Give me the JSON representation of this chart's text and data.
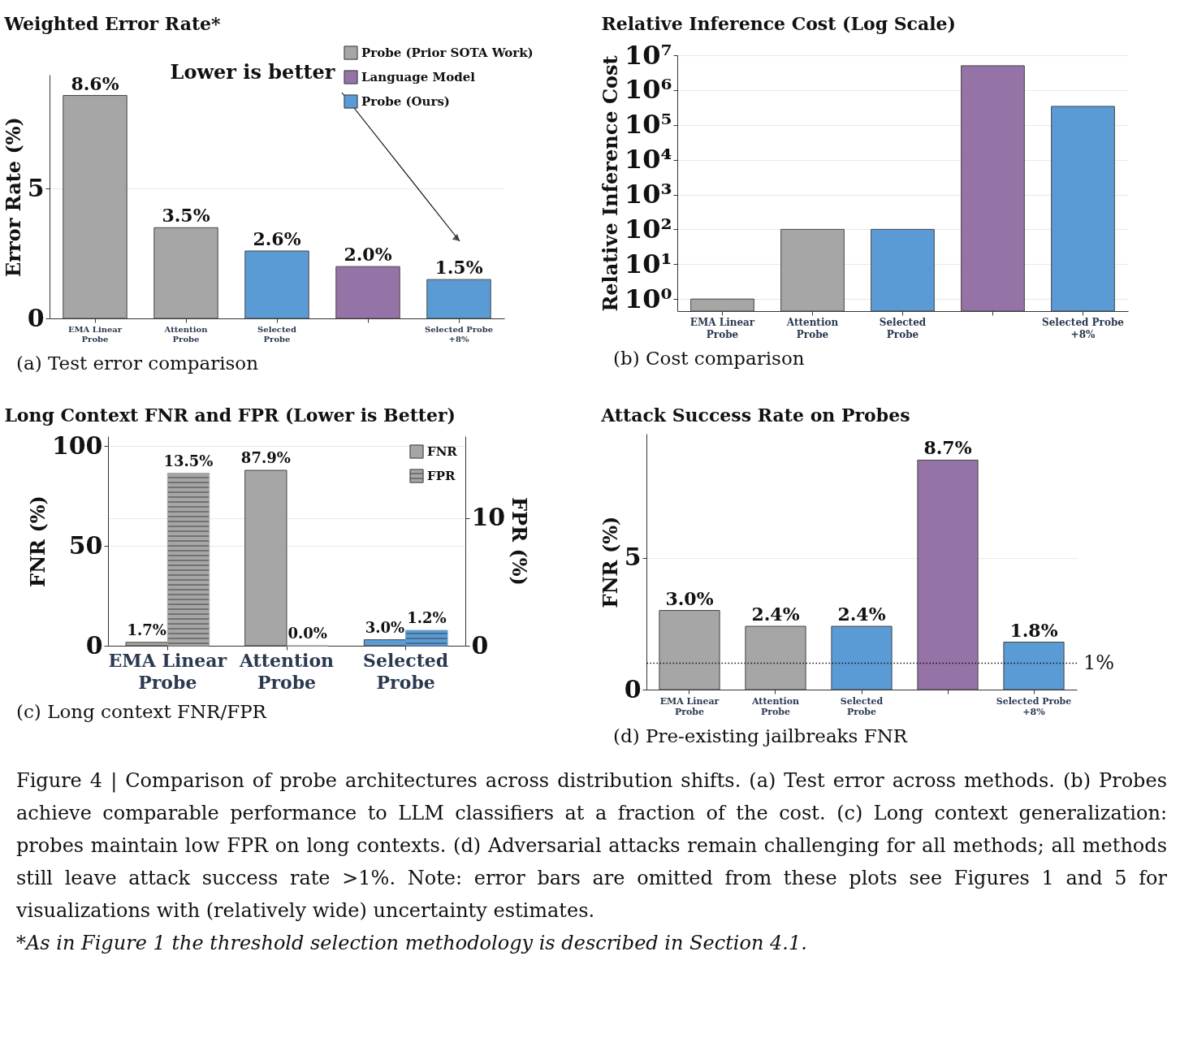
{
  "chart_data": [
    {
      "type": "bar",
      "title": "Weighted Error Rate*",
      "ylabel": "Error Rate (%)",
      "categories": [
        "EMA Linear\nProbe",
        "Attention\nProbe",
        "Selected\nProbe",
        null,
        "Selected Probe\n+8%"
      ],
      "stacked": true,
      "series": [
        {
          "name": "Probe (Prior SOTA Work)",
          "color": "#a6a6a6",
          "values": [
            8.6,
            3.5,
            null,
            null,
            null
          ],
          "value_labels": [
            "8.6%",
            "3.5%",
            null,
            null,
            null
          ]
        },
        {
          "name": "Language Model",
          "color": "#9673a6",
          "values": [
            null,
            null,
            null,
            2.0,
            null
          ],
          "value_labels": [
            null,
            null,
            null,
            "2.0%",
            null
          ]
        },
        {
          "name": "Probe (Ours)",
          "color": "#5b9bd5",
          "values": [
            null,
            null,
            2.6,
            null,
            1.5
          ],
          "value_labels": [
            null,
            null,
            "2.6%",
            null,
            "1.5%"
          ]
        }
      ],
      "ylim": [
        0,
        9.4
      ],
      "yticks": [
        0,
        5
      ],
      "grid": "y",
      "legend": "top right",
      "annotations": [
        "(a) Test error comparison",
        "Lower is better"
      ]
    },
    {
      "type": "bar",
      "title": "Relative Inference Cost (Log Scale)",
      "ylabel": "Relative Inference Cost",
      "categories": [
        "EMA Linear\nProbe",
        "Attention\nProbe",
        "Selected\nProbe",
        null,
        "Selected Probe\n+8%"
      ],
      "values": [
        1,
        100,
        100,
        5000000,
        340000
      ],
      "colors": [
        "#a6a6a6",
        "#a6a6a6",
        "#5b9bd5",
        "#9673a6",
        "#5b9bd5"
      ],
      "log": true,
      "ylim": [
        0.45,
        10000000
      ],
      "yticks": [
        {
          "value": 1,
          "label": "10⁰"
        },
        {
          "value": 10,
          "label": "10¹"
        },
        {
          "value": 100,
          "label": "10²"
        },
        {
          "value": 1000,
          "label": "10³"
        },
        {
          "value": 10000,
          "label": "10⁴"
        },
        {
          "value": 100000,
          "label": "10⁵"
        },
        {
          "value": 1000000,
          "label": "10⁶"
        },
        {
          "value": 10000000,
          "label": "10⁷"
        }
      ],
      "grid": "y",
      "annotations": [
        "(b) Cost comparison"
      ]
    },
    {
      "type": "bar",
      "title": "Long Context FNR and FPR (Lower is Better)",
      "ylabel": "FNR (%)",
      "y2label": "FPR (%)",
      "categories": [
        "EMA Linear\nProbe",
        "Attention\nProbe",
        "Selected\nProbe"
      ],
      "series": [
        {
          "name": "FNR",
          "colors": [
            "#a6a6a6",
            "#a6a6a6",
            "#5b9bd5"
          ],
          "values": [
            1.7,
            87.9,
            3.0
          ],
          "value_labels": [
            "1.7%",
            "87.9%",
            "3.0%"
          ]
        },
        {
          "name": "FPR",
          "axis": "y2",
          "colors": [
            "#a6a6a6",
            "#a6a6a6",
            "#5b9bd5"
          ],
          "values": [
            13.5,
            0.0,
            1.2
          ],
          "value_labels": [
            "13.5%",
            "0.0%",
            "1.2%"
          ]
        }
      ],
      "ylim": [
        0,
        105
      ],
      "yticks": [
        0,
        50,
        100
      ],
      "y2lim": [
        0,
        16.4
      ],
      "y2ticks": [
        0,
        10
      ],
      "grid": "y",
      "legend": "top right",
      "annotations": [
        "(c) Long context FNR/FPR"
      ]
    },
    {
      "type": "bar",
      "title": "Attack Success Rate on Probes",
      "ylabel": "FNR (%)",
      "categories": [
        "EMA Linear\nProbe",
        "Attention\nProbe",
        "Selected\nProbe",
        null,
        "Selected Probe\n+8%"
      ],
      "values": [
        3.0,
        2.4,
        2.4,
        8.7,
        1.8
      ],
      "colors": [
        "#a6a6a6",
        "#a6a6a6",
        "#5b9bd5",
        "#9673a6",
        "#5b9bd5"
      ],
      "value_labels": [
        "3.0%",
        "2.4%",
        "2.4%",
        "8.7%",
        "1.8%"
      ],
      "ylim": [
        0,
        9.7
      ],
      "yticks": [
        0,
        5
      ],
      "grid": "y",
      "ref_lines": [
        {
          "axis": "y",
          "value": 1,
          "label": "1%",
          "line_style": "dotted"
        }
      ],
      "annotations": [
        "(d) Pre-existing jailbreaks FNR",
        "Figure 4 | Comparison of probe architectures across distribution shifts. (a) Test error across methods. (b) Probes achieve comparable performance to LLM classifiers at a fraction of the cost. (c) Long context generalization: probes maintain low FPR on long contexts. (d) Adversarial attacks remain challenging for all methods; all methods still leave attack success rate >1%. Note: error bars are omitted from these plots see Figures 1 and 5 for visualizations with (relatively wide) uncertainty estimates.",
        "*As in Figure 1 the threshold selection methodology is described in Section 4.1."
      ]
    }
  ]
}
